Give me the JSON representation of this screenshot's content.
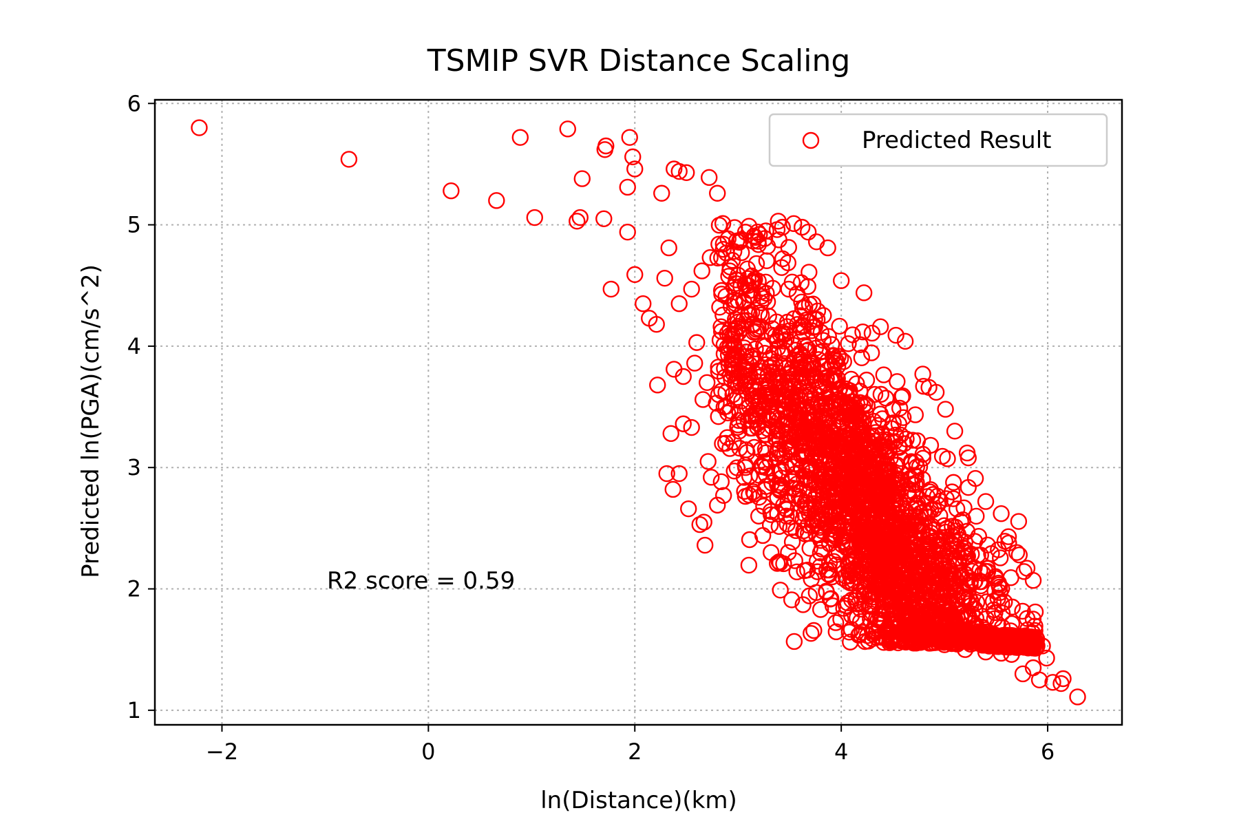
{
  "chart_data": {
    "type": "scatter",
    "title": "TSMIP SVR Distance Scaling",
    "xlabel": "ln(Distance)(km)",
    "ylabel": "Predicted ln(PGA)(cm/s^2)",
    "xlim": [
      -2.65,
      6.72
    ],
    "ylim": [
      0.88,
      6.03
    ],
    "xticks": [
      -2,
      0,
      2,
      4,
      6
    ],
    "xtick_labels": [
      "−2",
      "0",
      "2",
      "4",
      "6"
    ],
    "yticks": [
      1,
      2,
      3,
      4,
      5,
      6
    ],
    "ytick_labels": [
      "1",
      "2",
      "3",
      "4",
      "5",
      "6"
    ],
    "grid": true,
    "grid_style": "dotted",
    "legend": {
      "position": "top-right",
      "entries": [
        "Predicted Result"
      ]
    },
    "annotation": "R2 score = 0.59",
    "marker": "hollow-circle",
    "color": "#ff0000",
    "series": [
      {
        "name": "Predicted Result",
        "points": [
          [
            -2.22,
            5.8
          ],
          [
            -0.77,
            5.54
          ],
          [
            0.22,
            5.28
          ],
          [
            0.66,
            5.2
          ],
          [
            0.89,
            5.72
          ],
          [
            1.35,
            5.79
          ],
          [
            1.03,
            5.06
          ],
          [
            1.44,
            5.03
          ],
          [
            1.47,
            5.06
          ],
          [
            1.49,
            5.38
          ],
          [
            1.71,
            5.62
          ],
          [
            1.72,
            5.65
          ],
          [
            1.7,
            5.05
          ],
          [
            1.77,
            4.47
          ],
          [
            1.95,
            5.72
          ],
          [
            1.93,
            5.31
          ],
          [
            1.93,
            4.94
          ],
          [
            1.98,
            5.56
          ],
          [
            2.0,
            5.46
          ],
          [
            2.0,
            4.59
          ],
          [
            2.08,
            4.35
          ],
          [
            2.14,
            4.23
          ],
          [
            2.21,
            4.18
          ],
          [
            2.22,
            3.68
          ],
          [
            2.35,
            3.28
          ],
          [
            2.38,
            5.46
          ],
          [
            2.43,
            5.44
          ],
          [
            2.5,
            5.43
          ],
          [
            2.72,
            5.39
          ],
          [
            2.8,
            5.26
          ],
          [
            2.26,
            5.26
          ],
          [
            2.33,
            4.81
          ],
          [
            2.29,
            4.56
          ],
          [
            2.38,
            3.81
          ],
          [
            2.47,
            3.36
          ],
          [
            2.55,
            3.33
          ],
          [
            2.31,
            2.95
          ],
          [
            2.37,
            2.82
          ],
          [
            2.43,
            2.95
          ],
          [
            2.52,
            2.66
          ],
          [
            2.63,
            2.53
          ],
          [
            2.67,
            2.55
          ],
          [
            2.68,
            2.36
          ],
          [
            2.71,
            3.05
          ],
          [
            2.74,
            2.92
          ],
          [
            2.8,
            2.69
          ],
          [
            2.86,
            2.77
          ],
          [
            2.81,
            3.42
          ],
          [
            2.88,
            3.2
          ],
          [
            2.66,
            3.56
          ],
          [
            2.6,
            4.03
          ],
          [
            3.41,
            1.99
          ],
          [
            3.52,
            1.91
          ],
          [
            3.63,
            1.87
          ],
          [
            3.71,
            2.08
          ],
          [
            3.8,
            1.83
          ],
          [
            3.92,
            1.86
          ],
          [
            6.05,
            1.23
          ],
          [
            6.13,
            1.22
          ],
          [
            6.15,
            1.26
          ],
          [
            6.29,
            1.11
          ],
          [
            5.92,
            1.25
          ],
          [
            5.86,
            1.35
          ],
          [
            5.76,
            1.3
          ],
          [
            5.99,
            1.43
          ],
          [
            5.95,
            1.53
          ],
          [
            3.49,
            4.47
          ],
          [
            3.69,
            4.2
          ],
          [
            3.27,
            4.95
          ],
          [
            3.43,
            4.98
          ],
          [
            3.39,
            5.03
          ],
          [
            3.54,
            5.01
          ],
          [
            3.62,
            4.98
          ],
          [
            3.68,
            4.94
          ],
          [
            3.76,
            4.86
          ],
          [
            3.87,
            4.81
          ],
          [
            4.0,
            4.54
          ],
          [
            4.22,
            4.44
          ],
          [
            4.38,
            4.16
          ],
          [
            4.53,
            4.09
          ],
          [
            4.62,
            4.04
          ],
          [
            4.79,
            3.77
          ],
          [
            4.85,
            3.66
          ],
          [
            4.92,
            3.62
          ],
          [
            5.01,
            3.48
          ],
          [
            5.1,
            3.3
          ],
          [
            5.22,
            3.12
          ],
          [
            5.3,
            2.91
          ],
          [
            5.4,
            2.72
          ],
          [
            5.55,
            2.62
          ],
          [
            5.62,
            2.43
          ],
          [
            5.7,
            2.3
          ],
          [
            5.8,
            2.17
          ],
          [
            5.86,
            2.07
          ],
          [
            5.88,
            1.81
          ],
          [
            3.1,
            4.5
          ],
          [
            3.05,
            4.21
          ],
          [
            2.98,
            3.9
          ],
          [
            2.95,
            3.6
          ],
          [
            3.01,
            3.3
          ],
          [
            3.07,
            3.02
          ],
          [
            3.15,
            2.8
          ],
          [
            3.2,
            2.6
          ],
          [
            3.24,
            2.44
          ],
          [
            3.32,
            2.3
          ],
          [
            3.38,
            2.21
          ],
          [
            3.57,
            2.14
          ],
          [
            3.9,
            1.92
          ],
          [
            4.1,
            1.78
          ],
          [
            4.3,
            1.66
          ],
          [
            4.55,
            1.62
          ],
          [
            4.75,
            1.57
          ],
          [
            5.0,
            1.54
          ],
          [
            5.2,
            1.5
          ],
          [
            5.4,
            1.48
          ],
          [
            5.55,
            1.47
          ],
          [
            5.65,
            1.46
          ],
          [
            2.43,
            4.35
          ],
          [
            2.55,
            4.47
          ],
          [
            2.65,
            4.62
          ],
          [
            2.73,
            4.73
          ],
          [
            2.84,
            4.73
          ],
          [
            2.92,
            4.62
          ],
          [
            2.47,
            3.75
          ],
          [
            2.58,
            3.86
          ],
          [
            2.7,
            3.7
          ],
          [
            2.79,
            3.53
          ],
          [
            2.9,
            3.45
          ]
        ]
      }
    ]
  }
}
